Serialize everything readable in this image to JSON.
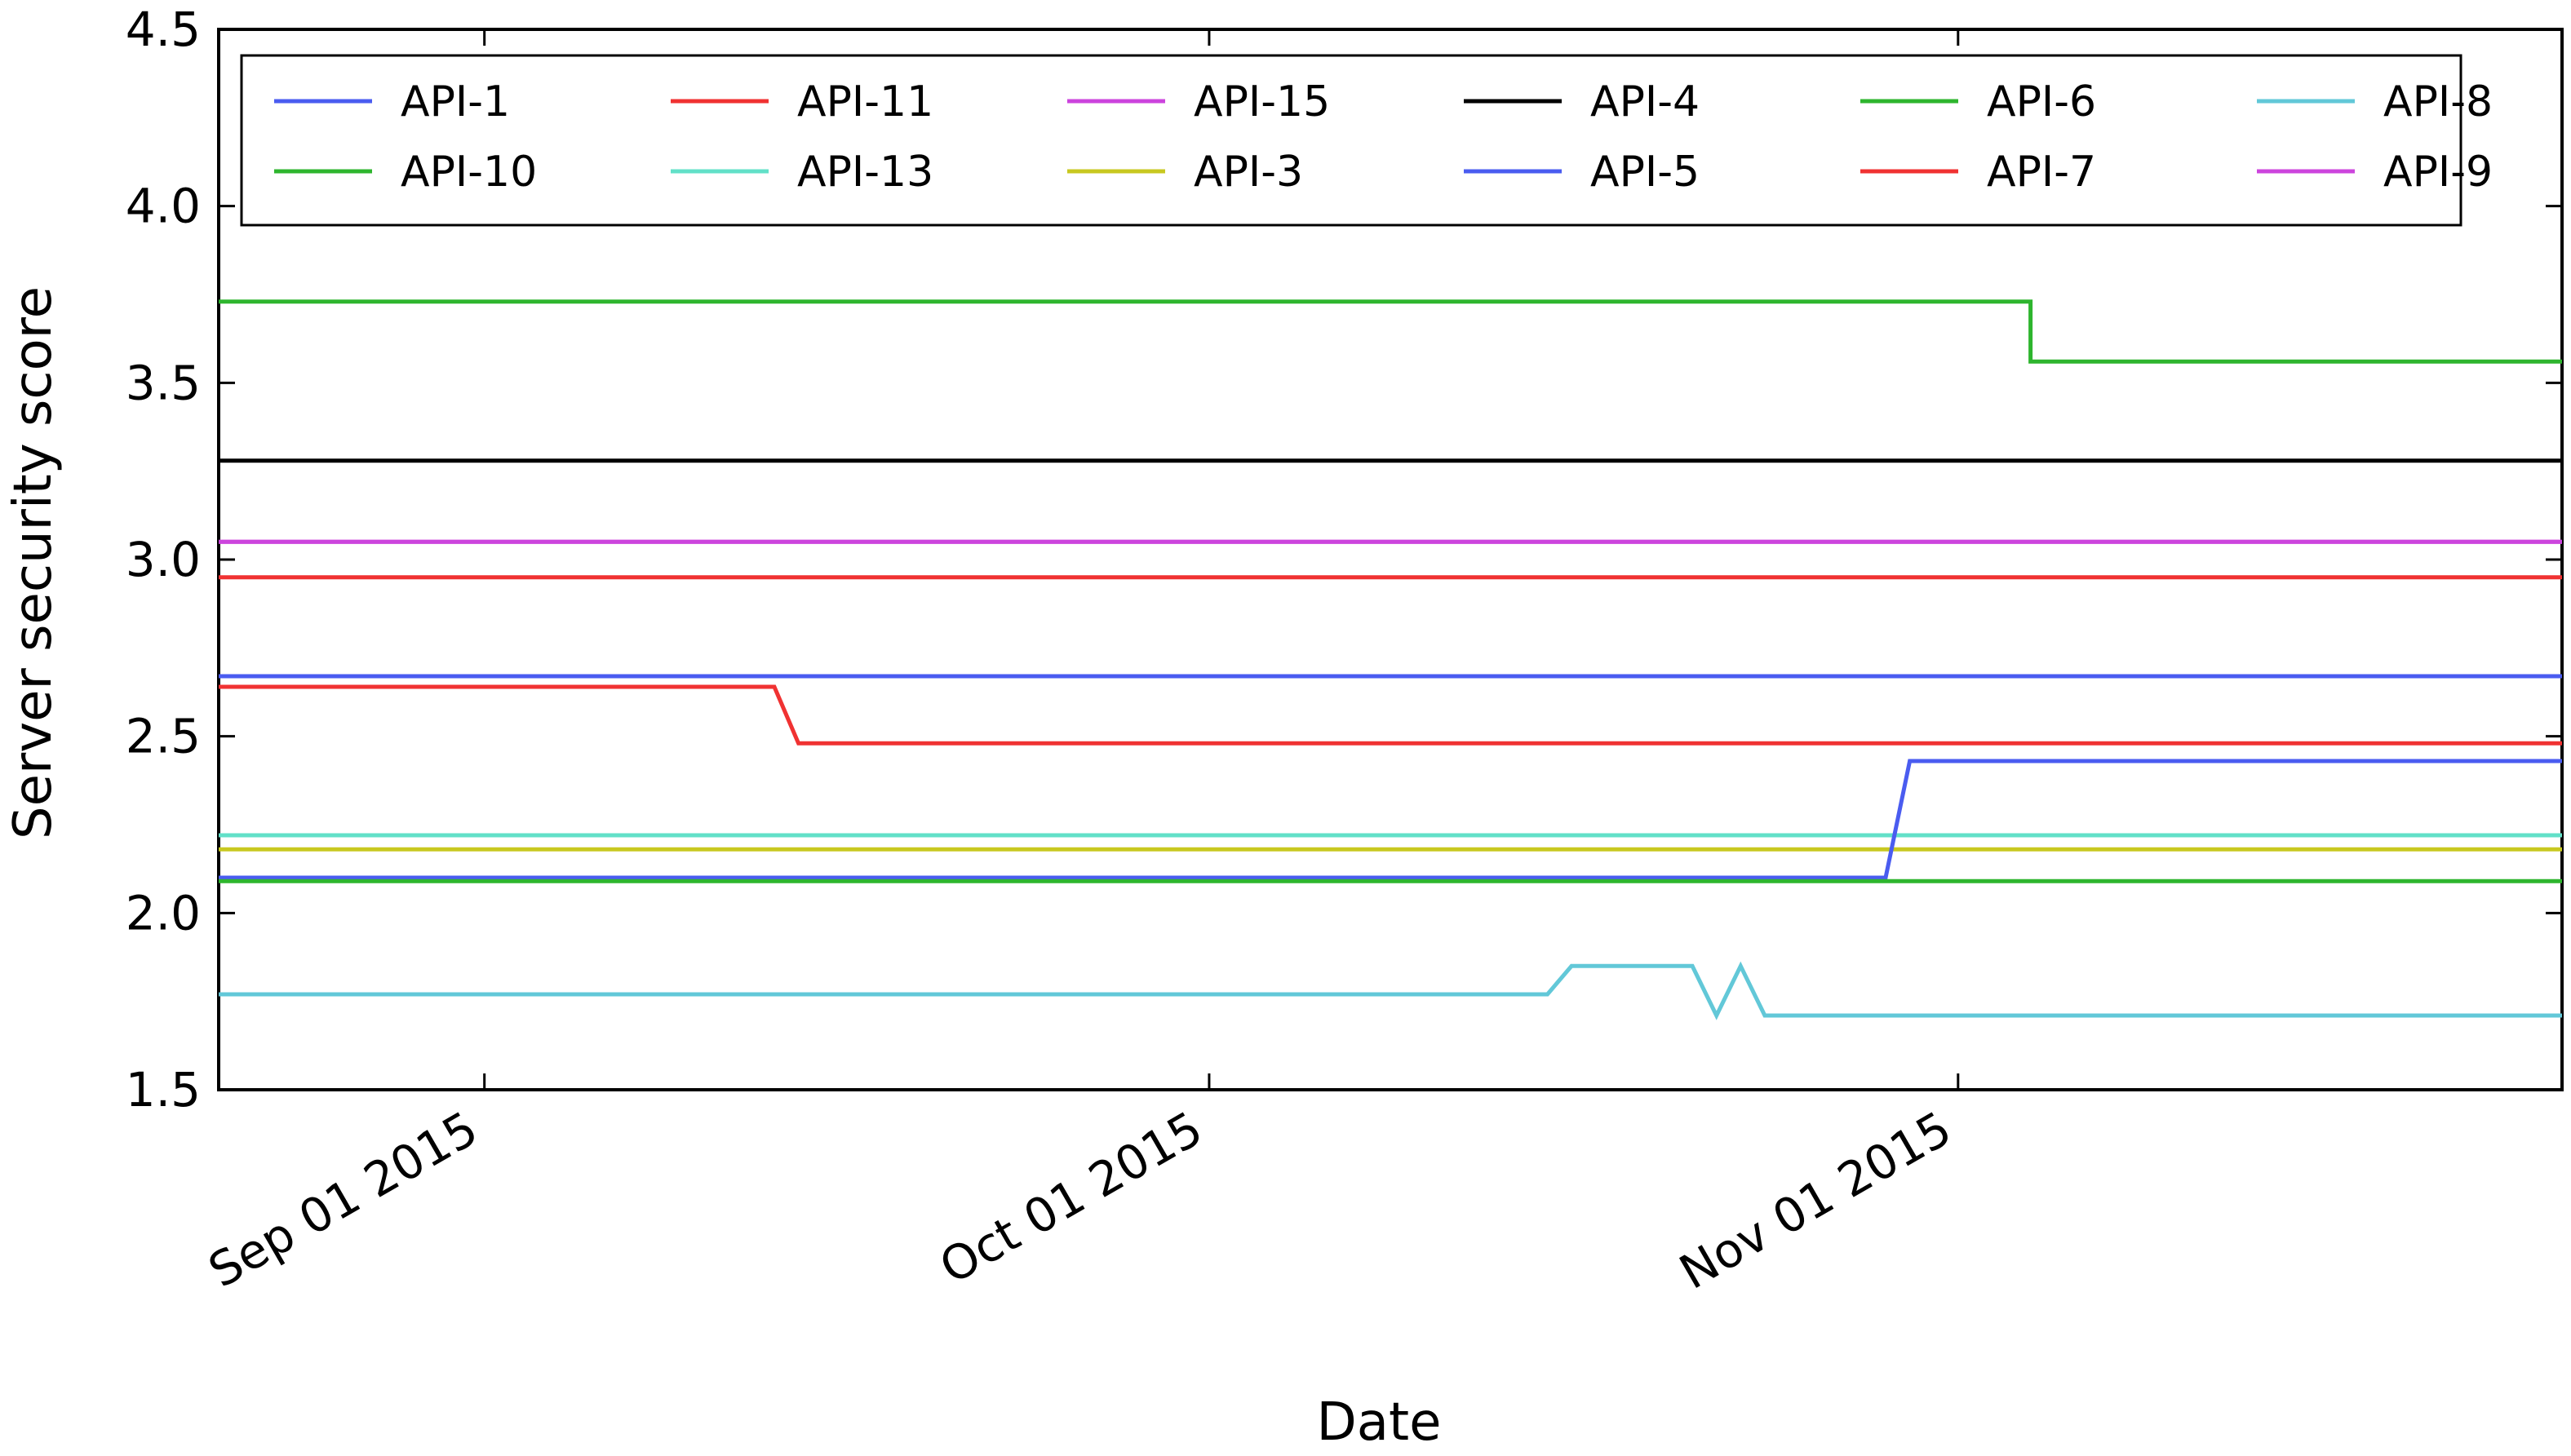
{
  "chart_data": {
    "type": "line",
    "title": "",
    "xlabel": "Date",
    "ylabel": "Server security score",
    "x_type": "date",
    "xlim": [
      "2015-08-21",
      "2015-11-26"
    ],
    "ylim": [
      1.5,
      4.5
    ],
    "yticks": [
      1.5,
      2.0,
      2.5,
      3.0,
      3.5,
      4.0,
      4.5
    ],
    "ytick_labels": [
      "1.5",
      "2.0",
      "2.5",
      "3.0",
      "3.5",
      "4.0",
      "4.5"
    ],
    "xticks": [
      "2015-09-01",
      "2015-10-01",
      "2015-11-01"
    ],
    "xtick_labels": [
      "Sep 01 2015",
      "Oct 01 2015",
      "Nov 01 2015"
    ],
    "grid": false,
    "legend": {
      "placement": "top",
      "columns": 6
    },
    "series": [
      {
        "name": "API-1",
        "color": "#4a5cf0",
        "points": [
          [
            "2015-08-21",
            2.67
          ],
          [
            "2015-11-26",
            2.67
          ]
        ]
      },
      {
        "name": "API-10",
        "color": "#2eb52e",
        "points": [
          [
            "2015-08-21",
            3.73
          ],
          [
            "2015-11-04",
            3.73
          ],
          [
            "2015-11-04",
            3.56
          ],
          [
            "2015-11-26",
            3.56
          ]
        ]
      },
      {
        "name": "API-11",
        "color": "#f03232",
        "points": [
          [
            "2015-08-21",
            2.64
          ],
          [
            "2015-09-13",
            2.64
          ],
          [
            "2015-09-14",
            2.48
          ],
          [
            "2015-11-26",
            2.48
          ]
        ]
      },
      {
        "name": "API-13",
        "color": "#62e0c8",
        "points": [
          [
            "2015-08-21",
            2.22
          ],
          [
            "2015-11-26",
            2.22
          ]
        ]
      },
      {
        "name": "API-15",
        "color": "#cc44dd",
        "points": [
          [
            "2015-08-21",
            3.05
          ],
          [
            "2015-11-26",
            3.05
          ]
        ]
      },
      {
        "name": "API-3",
        "color": "#c8c820",
        "points": [
          [
            "2015-08-21",
            2.18
          ],
          [
            "2015-11-26",
            2.18
          ]
        ]
      },
      {
        "name": "API-4",
        "color": "#000000",
        "points": [
          [
            "2015-08-21",
            3.28
          ],
          [
            "2015-11-26",
            3.28
          ]
        ]
      },
      {
        "name": "API-5",
        "color": "#4a5cf0",
        "points": [
          [
            "2015-08-21",
            2.1
          ],
          [
            "2015-10-29",
            2.1
          ],
          [
            "2015-10-30",
            2.43
          ],
          [
            "2015-11-26",
            2.43
          ]
        ]
      },
      {
        "name": "API-6",
        "color": "#2eb52e",
        "points": [
          [
            "2015-08-21",
            2.09
          ],
          [
            "2015-11-26",
            2.09
          ]
        ]
      },
      {
        "name": "API-7",
        "color": "#f03232",
        "points": [
          [
            "2015-08-21",
            2.95
          ],
          [
            "2015-11-26",
            2.95
          ]
        ]
      },
      {
        "name": "API-8",
        "color": "#62c8d8",
        "points": [
          [
            "2015-08-21",
            1.77
          ],
          [
            "2015-10-15",
            1.77
          ],
          [
            "2015-10-16",
            1.85
          ],
          [
            "2015-10-21",
            1.85
          ],
          [
            "2015-10-22",
            1.71
          ],
          [
            "2015-10-23",
            1.85
          ],
          [
            "2015-10-24",
            1.71
          ],
          [
            "2015-11-26",
            1.71
          ]
        ]
      },
      {
        "name": "API-9",
        "color": "#cc44dd",
        "points": [
          [
            "2015-08-21",
            3.05
          ],
          [
            "2015-11-26",
            3.05
          ]
        ]
      }
    ]
  }
}
